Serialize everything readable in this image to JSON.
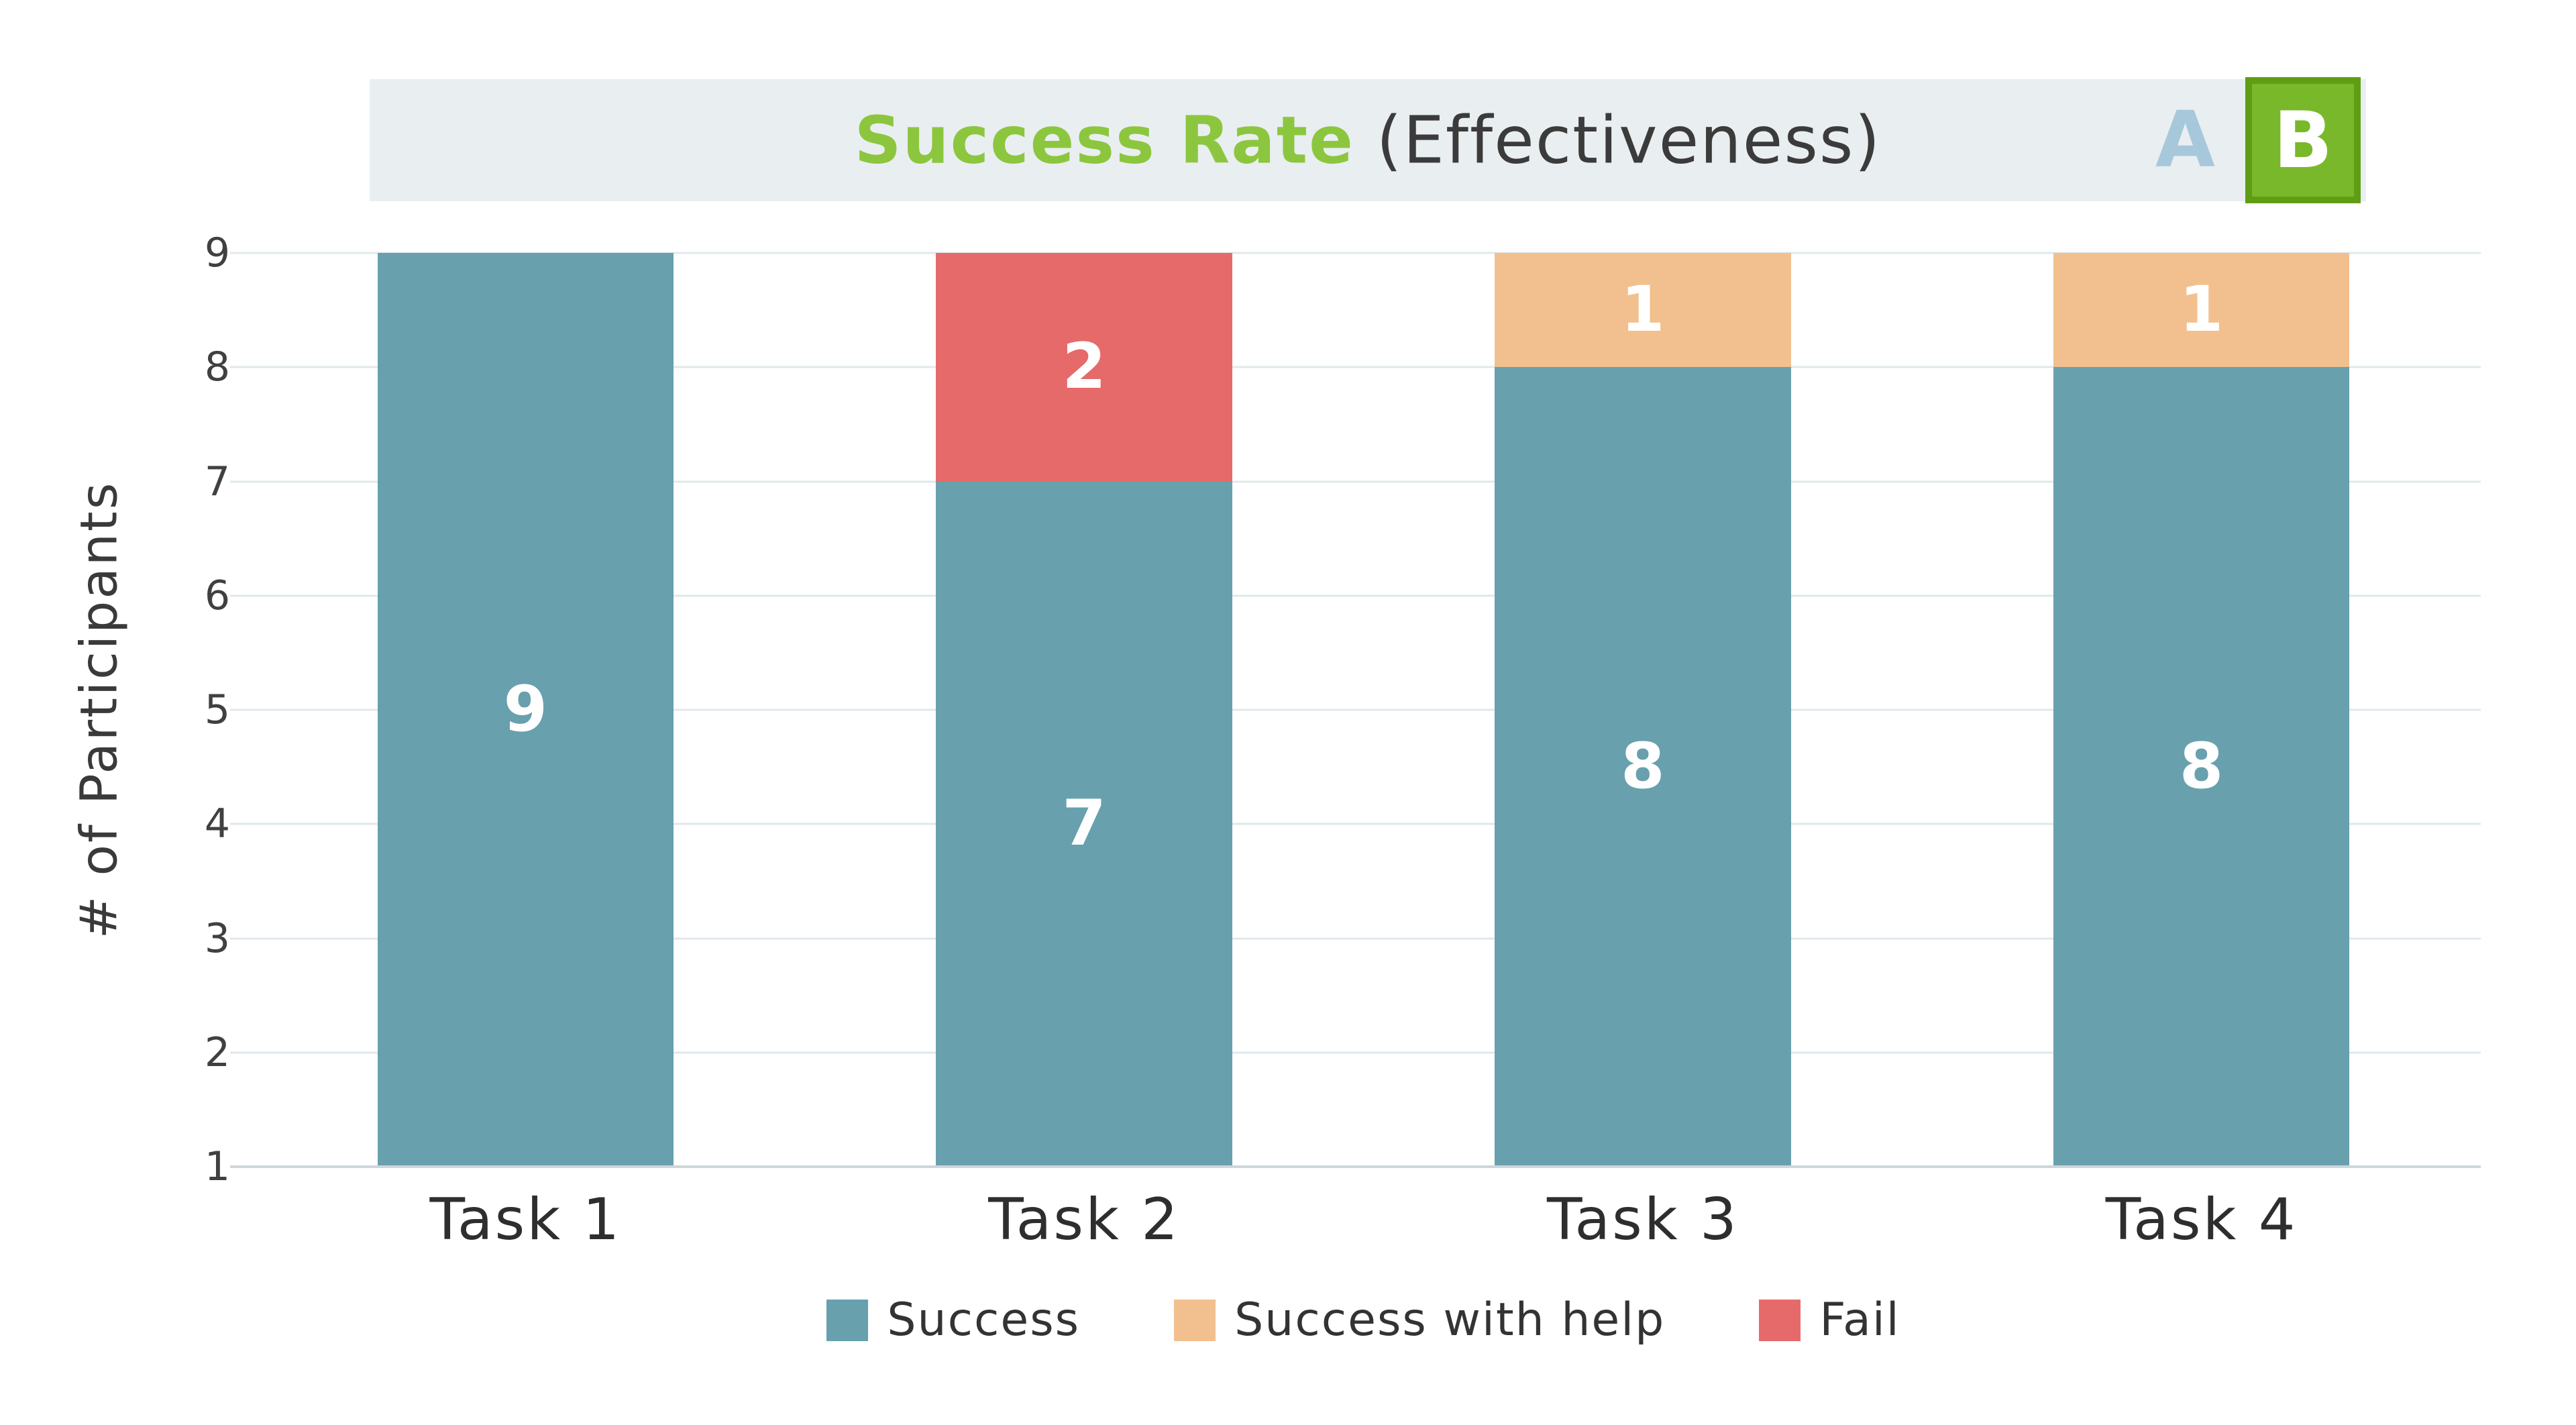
{
  "header": {
    "title_highlight": "Success Rate",
    "title_rest": " (Effectiveness)",
    "toggle": {
      "a_label": "A",
      "b_label": "B",
      "selected": "B"
    },
    "colors": {
      "bar_background": "#e9eef1",
      "title_highlight": "#8cc63e",
      "toggle_a": "#a6c8da",
      "toggle_b_fill": "#79b82a",
      "toggle_b_border": "#5f9e14"
    }
  },
  "chart_data": {
    "type": "bar",
    "stacked": true,
    "title": "Success Rate (Effectiveness)",
    "categories": [
      "Task 1",
      "Task 2",
      "Task 3",
      "Task 4"
    ],
    "series": [
      {
        "name": "Success",
        "color": "#68a0ae",
        "values": [
          9,
          7,
          8,
          8
        ]
      },
      {
        "name": "Success with help",
        "color": "#f2c08e",
        "values": [
          0,
          0,
          1,
          1
        ]
      },
      {
        "name": "Fail",
        "color": "#e66a6a",
        "values": [
          0,
          2,
          0,
          0
        ]
      }
    ],
    "xlabel": "",
    "ylabel": "# of Participants",
    "ylim": [
      1,
      9
    ],
    "yticks": [
      1,
      2,
      3,
      4,
      5,
      6,
      7,
      8,
      9
    ],
    "grid": true,
    "legend_position": "bottom"
  }
}
